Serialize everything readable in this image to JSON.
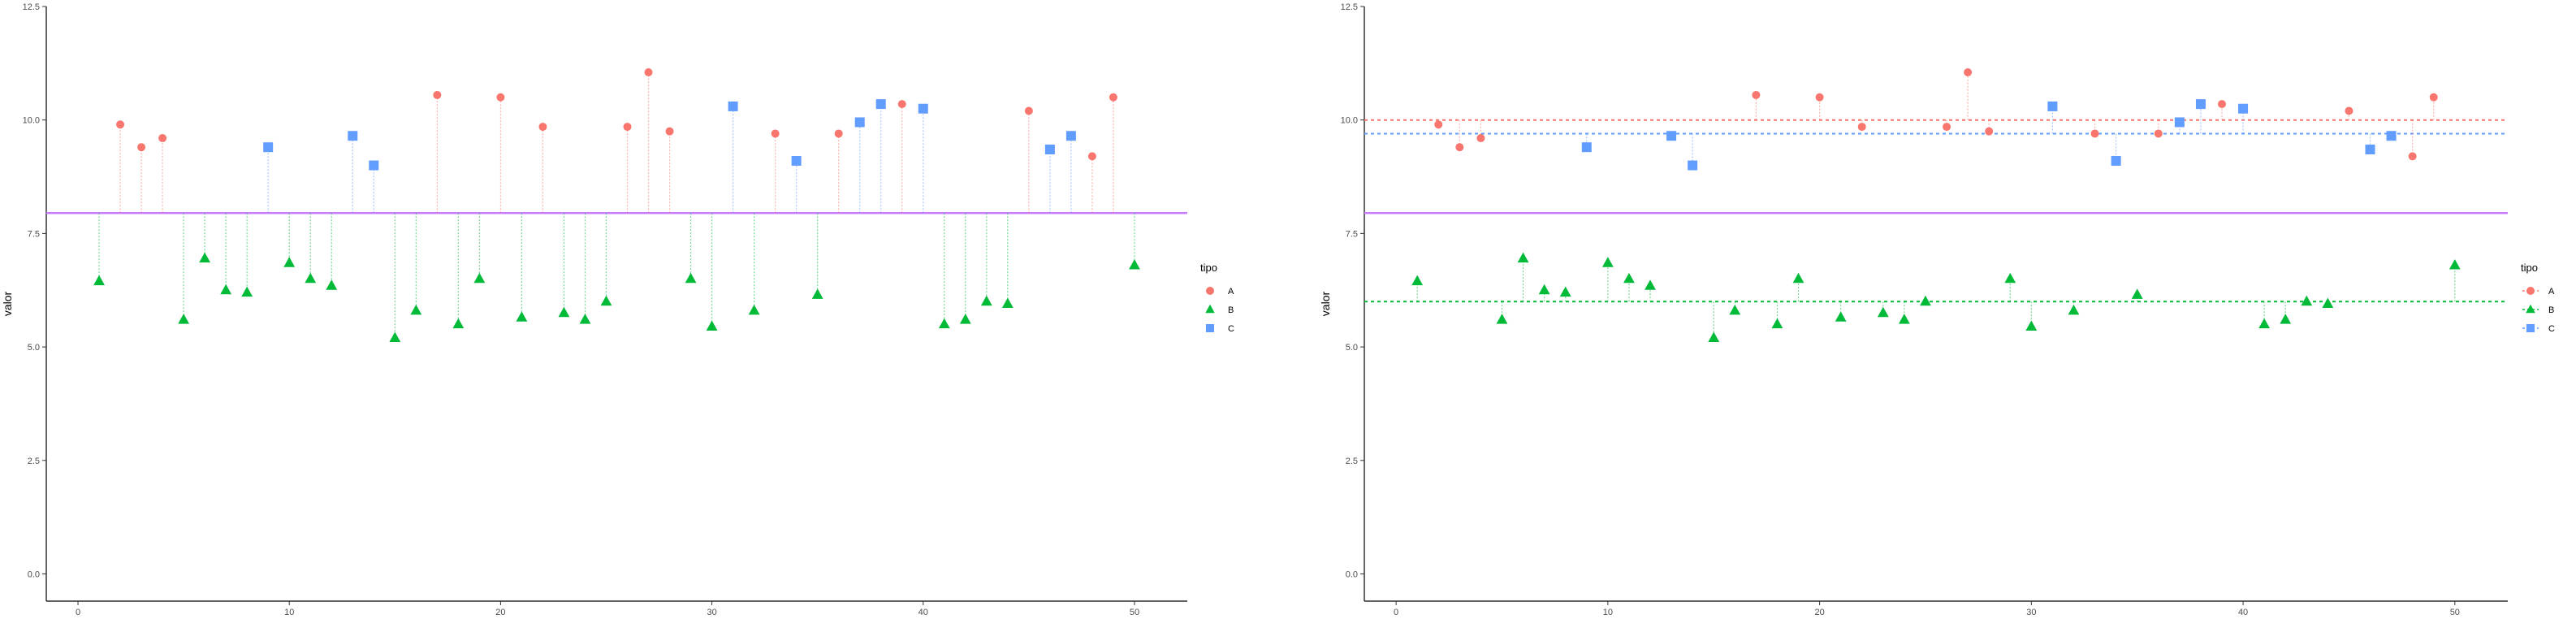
{
  "colors": {
    "A": "#F8766D",
    "B": "#00BA38",
    "C": "#619CFF",
    "baseline": "#C77CFF"
  },
  "chart_data": [
    {
      "type": "scatter",
      "subtype": "lollipop",
      "xlabel": "",
      "ylabel": "valor",
      "xlim": [
        -1.5,
        52.5
      ],
      "ylim": [
        -0.6,
        12.5
      ],
      "x_ticks": [
        0,
        10,
        20,
        30,
        40,
        50
      ],
      "x_tick_labels": [
        "0",
        "10",
        "20",
        "30",
        "40",
        "50"
      ],
      "y_ticks": [
        0,
        2.5,
        5,
        7.5,
        10,
        12.5
      ],
      "y_tick_labels": [
        "0.0",
        "2.5",
        "5.0",
        "7.5",
        "10.0",
        "12.5"
      ],
      "grid": false,
      "legend": {
        "title": "tipo",
        "position": "right",
        "entries": [
          "A",
          "B",
          "C"
        ]
      },
      "baseline": 7.95,
      "group_means": [],
      "series": [
        {
          "name": "A",
          "shape": "circle",
          "x": [
            2,
            3,
            4,
            17,
            20,
            22,
            26,
            27,
            28,
            33,
            36,
            39,
            45,
            48,
            49
          ],
          "y": [
            9.9,
            9.4,
            9.6,
            10.55,
            10.5,
            9.85,
            9.85,
            11.05,
            9.75,
            9.7,
            9.7,
            10.35,
            10.2,
            9.2,
            10.5
          ]
        },
        {
          "name": "B",
          "shape": "triangle",
          "x": [
            1,
            5,
            6,
            7,
            8,
            10,
            11,
            12,
            15,
            16,
            18,
            19,
            21,
            23,
            24,
            25,
            29,
            30,
            32,
            35,
            41,
            42,
            43,
            44,
            50
          ],
          "y": [
            6.45,
            5.6,
            6.95,
            6.25,
            6.2,
            6.85,
            6.5,
            6.35,
            5.2,
            5.8,
            5.5,
            6.5,
            5.65,
            5.75,
            5.6,
            6.0,
            6.5,
            5.45,
            5.8,
            6.15,
            5.5,
            5.6,
            6.0,
            5.95,
            6.8
          ]
        },
        {
          "name": "C",
          "shape": "square",
          "x": [
            9,
            13,
            14,
            31,
            34,
            37,
            38,
            40,
            46,
            47
          ],
          "y": [
            9.4,
            9.65,
            9.0,
            10.3,
            9.1,
            9.95,
            10.35,
            10.25,
            9.35,
            9.65
          ]
        }
      ]
    },
    {
      "type": "scatter",
      "subtype": "lollipop",
      "xlabel": "",
      "ylabel": "valor",
      "xlim": [
        -1.5,
        52.5
      ],
      "ylim": [
        -0.6,
        12.5
      ],
      "x_ticks": [
        0,
        10,
        20,
        30,
        40,
        50
      ],
      "x_tick_labels": [
        "0",
        "10",
        "20",
        "30",
        "40",
        "50"
      ],
      "y_ticks": [
        0,
        2.5,
        5,
        7.5,
        10,
        12.5
      ],
      "y_tick_labels": [
        "0.0",
        "2.5",
        "5.0",
        "7.5",
        "10.0",
        "12.5"
      ],
      "grid": false,
      "legend": {
        "title": "tipo",
        "position": "right",
        "entries": [
          "A",
          "B",
          "C"
        ]
      },
      "baseline": 7.95,
      "group_means": [
        {
          "name": "A",
          "value": 10.0
        },
        {
          "name": "B",
          "value": 6.0
        },
        {
          "name": "C",
          "value": 9.7
        }
      ],
      "series": [
        {
          "name": "A",
          "shape": "circle",
          "x": [
            2,
            3,
            4,
            17,
            20,
            22,
            26,
            27,
            28,
            33,
            36,
            39,
            45,
            48,
            49
          ],
          "y": [
            9.9,
            9.4,
            9.6,
            10.55,
            10.5,
            9.85,
            9.85,
            11.05,
            9.75,
            9.7,
            9.7,
            10.35,
            10.2,
            9.2,
            10.5
          ]
        },
        {
          "name": "B",
          "shape": "triangle",
          "x": [
            1,
            5,
            6,
            7,
            8,
            10,
            11,
            12,
            15,
            16,
            18,
            19,
            21,
            23,
            24,
            25,
            29,
            30,
            32,
            35,
            41,
            42,
            43,
            44,
            50
          ],
          "y": [
            6.45,
            5.6,
            6.95,
            6.25,
            6.2,
            6.85,
            6.5,
            6.35,
            5.2,
            5.8,
            5.5,
            6.5,
            5.65,
            5.75,
            5.6,
            6.0,
            6.5,
            5.45,
            5.8,
            6.15,
            5.5,
            5.6,
            6.0,
            5.95,
            6.8
          ]
        },
        {
          "name": "C",
          "shape": "square",
          "x": [
            9,
            13,
            14,
            31,
            34,
            37,
            38,
            40,
            46,
            47
          ],
          "y": [
            9.4,
            9.65,
            9.0,
            10.3,
            9.1,
            9.95,
            10.35,
            10.25,
            9.35,
            9.65
          ]
        }
      ]
    }
  ]
}
